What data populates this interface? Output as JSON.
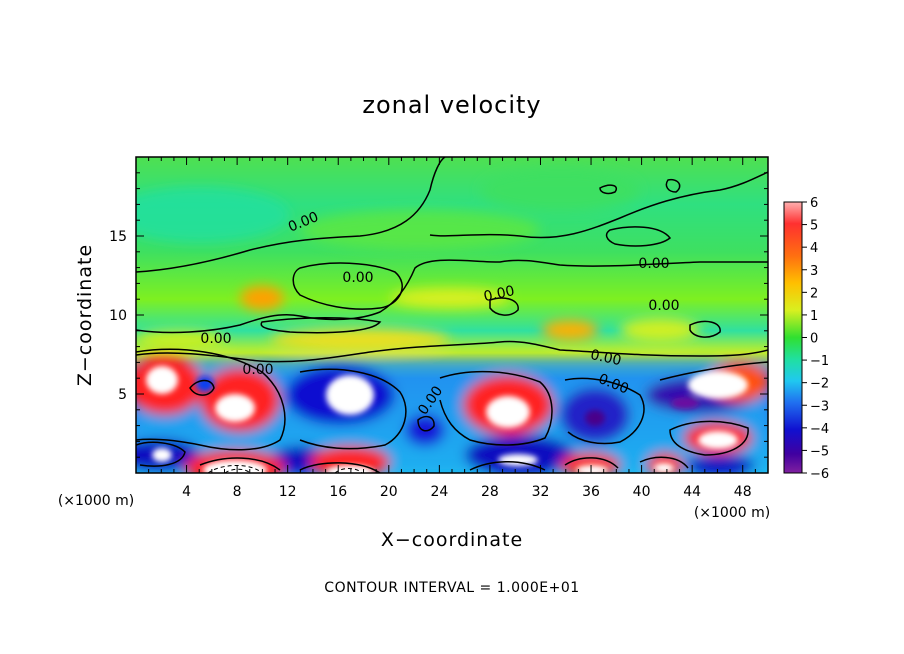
{
  "chart_data": {
    "type": "heatmap",
    "title": "zonal velocity",
    "xlabel": "X−coordinate",
    "ylabel": "Z−coordinate",
    "x_unit_label": "(×1000 m)",
    "z_unit_label": "(×1000 m)",
    "xlim": [
      0,
      50
    ],
    "ylim": [
      0,
      20
    ],
    "x_ticks": [
      "4",
      "8",
      "12",
      "16",
      "20",
      "24",
      "28",
      "32",
      "36",
      "40",
      "44",
      "48"
    ],
    "x_tick_values": [
      4,
      8,
      12,
      16,
      20,
      24,
      28,
      32,
      36,
      40,
      44,
      48
    ],
    "y_ticks": [
      "5",
      "10",
      "15"
    ],
    "y_tick_values": [
      5,
      10,
      15
    ],
    "colorbar": {
      "ticks": [
        "6",
        "5",
        "4",
        "3",
        "2",
        "1",
        "0",
        "−1",
        "−2",
        "−3",
        "−4",
        "−5",
        "−6"
      ],
      "range": [
        -6,
        6
      ],
      "colors": [
        "#7a1fa2",
        "#4b00a6",
        "#1010d8",
        "#2a6af0",
        "#22b8f0",
        "#1ee0c0",
        "#2fe050",
        "#7ef018",
        "#e8f020",
        "#ffb000",
        "#ff5a10",
        "#ff1010",
        "#ff9090"
      ]
    },
    "contour_labels": [
      "0.00",
      "0.00",
      "0.00",
      "0.00",
      "0.00",
      "0.00",
      "0.00",
      "0.00",
      "0.00",
      "0.00"
    ],
    "contour_interval_note": "CONTOUR INTERVAL = 1.000E+01"
  }
}
